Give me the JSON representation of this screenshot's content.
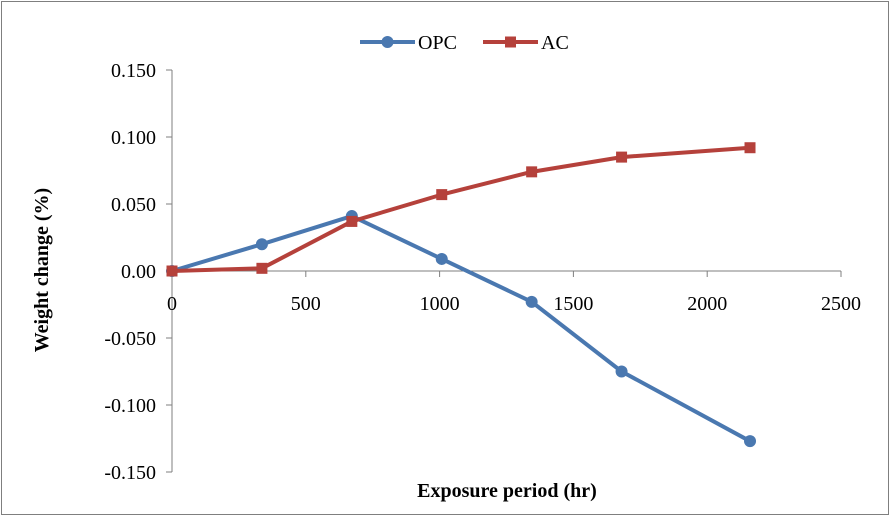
{
  "chart_data": {
    "type": "line",
    "xlabel": "Exposure period (hr)",
    "ylabel": "Weight change (%)",
    "xlim": [
      0,
      2500
    ],
    "ylim": [
      -0.15,
      0.15
    ],
    "x_ticks": [
      "0",
      "500",
      "1000",
      "1500",
      "2000",
      "2500"
    ],
    "y_ticks": [
      "0.150",
      "0.100",
      "0.050",
      "0.00",
      "-0.050",
      "-0.100",
      "-0.150"
    ],
    "grid": false,
    "legend_position": "top",
    "series": [
      {
        "name": "OPC",
        "color": "#4a78b0",
        "marker": "circle",
        "x": [
          0,
          336,
          672,
          1008,
          1344,
          1680,
          2160
        ],
        "y": [
          0.0,
          0.02,
          0.041,
          0.009,
          -0.023,
          -0.075,
          -0.127
        ]
      },
      {
        "name": "AC",
        "color": "#b5413b",
        "marker": "square",
        "x": [
          0,
          336,
          672,
          1008,
          1344,
          1680,
          2160
        ],
        "y": [
          0.0,
          0.002,
          0.037,
          0.057,
          0.074,
          0.085,
          0.092
        ]
      }
    ]
  }
}
